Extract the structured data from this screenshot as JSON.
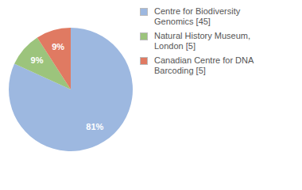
{
  "chart_data": {
    "type": "pie",
    "categories": [
      "Centre for Biodiversity Genomics [45]",
      "Natural History Museum, London [5]",
      "Canadian Centre for DNA Barcoding [5]"
    ],
    "values": [
      81,
      9,
      9
    ],
    "value_labels": [
      "81%",
      "9%",
      "9%"
    ],
    "colors": [
      "#9db8e0",
      "#9cc47c",
      "#e07a62"
    ],
    "data_labels": true,
    "legend": "right"
  }
}
